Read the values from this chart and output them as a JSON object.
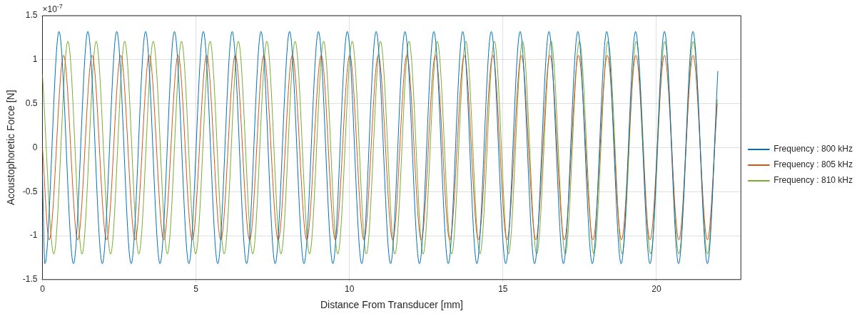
{
  "chart_data": {
    "type": "line",
    "xlabel": "Distance From Transducer [mm]",
    "ylabel": "Acoustophoretic Force [N]",
    "annotations": [
      "×10$^{-7}$"
    ],
    "xlim": [
      0,
      22.75
    ],
    "ylim": [
      -1.5,
      1.5
    ],
    "xticks": [
      0,
      5,
      10,
      15,
      20
    ],
    "yticks": [
      -1.5,
      -1,
      -0.5,
      0,
      0.5,
      1,
      1.5
    ],
    "grid": true,
    "legend": "right",
    "marker": "none",
    "line_style": "solid",
    "series": [
      {
        "name": "Frequency : 800 kHz",
        "color": "#0072bd",
        "x": [
          0,
          0.08,
          0.54,
          1.01,
          1.48,
          1.95,
          2.42,
          2.89,
          3.36,
          3.83,
          4.3,
          4.77,
          5.24,
          5.71,
          6.18,
          6.65,
          7.12,
          7.58,
          8.05,
          8.52,
          8.99,
          9.46,
          9.93,
          10.4,
          10.87,
          11.34,
          11.81,
          12.28,
          12.75,
          13.22,
          13.69,
          14.15,
          14.62,
          15.09,
          15.56,
          16.03,
          16.5,
          16.97,
          17.44,
          17.91,
          18.38,
          18.85,
          19.32,
          19.79,
          20.26,
          20.72,
          21.19,
          21.66,
          22.0
        ],
        "values": [
          -0.3,
          -1.32,
          1.32,
          -1.32,
          1.32,
          -1.32,
          1.32,
          -1.32,
          1.32,
          -1.32,
          1.32,
          -1.32,
          1.32,
          -1.32,
          1.32,
          -1.32,
          1.32,
          -1.32,
          1.32,
          -1.32,
          1.32,
          -1.32,
          1.32,
          -1.32,
          1.32,
          -1.32,
          1.32,
          -1.32,
          1.32,
          -1.32,
          1.32,
          -1.32,
          1.32,
          -1.32,
          1.32,
          -1.32,
          1.32,
          -1.32,
          1.32,
          -1.32,
          1.32,
          -1.32,
          1.32,
          -1.32,
          1.32,
          -1.32,
          1.32,
          -1.32,
          0.87
        ]
      },
      {
        "name": "Frequency : 805 kHz",
        "color": "#d95319",
        "x": [
          0,
          0.22,
          0.69,
          1.15,
          1.62,
          2.09,
          2.55,
          3.02,
          3.48,
          3.95,
          4.42,
          4.88,
          5.35,
          5.81,
          6.28,
          6.75,
          7.21,
          7.68,
          8.14,
          8.61,
          9.08,
          9.54,
          10.01,
          10.47,
          10.94,
          11.41,
          11.87,
          12.34,
          12.8,
          13.27,
          13.74,
          14.2,
          14.67,
          15.13,
          15.6,
          16.07,
          16.53,
          17.0,
          17.46,
          17.93,
          18.4,
          18.86,
          19.33,
          19.79,
          20.26,
          20.73,
          21.19,
          21.66,
          21.98
        ],
        "values": [
          0,
          -1.05,
          1.05,
          -1.05,
          1.05,
          -1.05,
          1.05,
          -1.05,
          1.05,
          -1.05,
          1.05,
          -1.05,
          1.05,
          -1.05,
          1.05,
          -1.05,
          1.05,
          -1.05,
          1.05,
          -1.05,
          1.05,
          -1.05,
          1.05,
          -1.05,
          1.05,
          -1.05,
          1.05,
          -1.05,
          1.05,
          -1.05,
          1.05,
          -1.05,
          1.05,
          -1.05,
          1.05,
          -1.05,
          1.05,
          -1.05,
          1.05,
          -1.05,
          1.05,
          -1.05,
          1.05,
          -1.05,
          1.05,
          -1.05,
          1.05,
          -1.05,
          0.5
        ]
      },
      {
        "name": "Frequency : 810 kHz",
        "color": "#77ac30",
        "x": [
          0,
          0.37,
          0.83,
          1.29,
          1.75,
          2.22,
          2.68,
          3.14,
          3.61,
          4.07,
          4.53,
          4.99,
          5.46,
          5.92,
          6.38,
          6.85,
          7.31,
          7.77,
          8.23,
          8.7,
          9.16,
          9.62,
          10.09,
          10.55,
          11.01,
          11.48,
          11.94,
          12.4,
          12.86,
          13.33,
          13.79,
          14.25,
          14.72,
          15.18,
          15.64,
          16.1,
          16.57,
          17.03,
          17.49,
          17.96,
          18.42,
          18.88,
          19.34,
          19.81,
          20.27,
          20.73,
          21.2,
          21.66,
          21.98
        ],
        "values": [
          0.83,
          -1.21,
          1.21,
          -1.21,
          1.21,
          -1.21,
          1.21,
          -1.21,
          1.21,
          -1.21,
          1.21,
          -1.21,
          1.21,
          -1.21,
          1.21,
          -1.21,
          1.21,
          -1.21,
          1.21,
          -1.21,
          1.21,
          -1.21,
          1.21,
          -1.21,
          1.21,
          -1.21,
          1.21,
          -1.21,
          1.21,
          -1.21,
          1.21,
          -1.21,
          1.21,
          -1.21,
          1.21,
          -1.21,
          1.21,
          -1.21,
          1.21,
          -1.21,
          1.21,
          -1.21,
          1.21,
          -1.21,
          1.21,
          -1.21,
          1.21,
          -1.21,
          0.55
        ]
      }
    ]
  }
}
